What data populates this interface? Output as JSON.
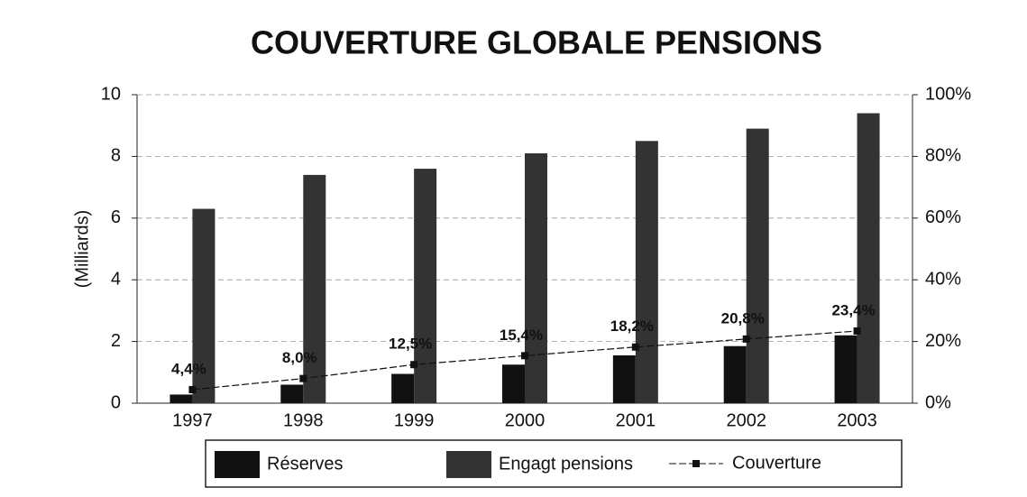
{
  "chart_data": {
    "type": "bar",
    "title": "COUVERTURE GLOBALE PENSIONS",
    "y_label": "(Milliards)",
    "categories": [
      "1997",
      "1998",
      "1999",
      "2000",
      "2001",
      "2002",
      "2003"
    ],
    "series": [
      {
        "name": "Réserves",
        "color": "#111111",
        "values": [
          0.28,
          0.6,
          0.95,
          1.25,
          1.55,
          1.85,
          2.2
        ]
      },
      {
        "name": "Engagt pensions",
        "color": "#333333",
        "values": [
          6.3,
          7.4,
          7.6,
          8.1,
          8.5,
          8.9,
          9.4
        ]
      },
      {
        "name": "Couverture",
        "type": "line",
        "axis": "y2",
        "color": "#111111",
        "values": [
          4.4,
          8.0,
          12.5,
          15.4,
          18.2,
          20.8,
          23.4
        ],
        "value_labels": [
          "4,4%",
          "8,0%",
          "12,5%",
          "15,4%",
          "18,2%",
          "20,8%",
          "23,4%"
        ]
      }
    ],
    "ylim": [
      0,
      10
    ],
    "yticks": [
      0,
      2,
      4,
      6,
      8,
      10
    ],
    "y2lim": [
      0,
      100
    ],
    "y2ticks": [
      {
        "value": 0,
        "label": "0%"
      },
      {
        "value": 20,
        "label": "20%"
      },
      {
        "value": 40,
        "label": "40%"
      },
      {
        "value": 60,
        "label": "60%"
      },
      {
        "value": 80,
        "label": "80%"
      },
      {
        "value": 100,
        "label": "100%"
      }
    ],
    "grid": true,
    "legend": "bottom"
  }
}
